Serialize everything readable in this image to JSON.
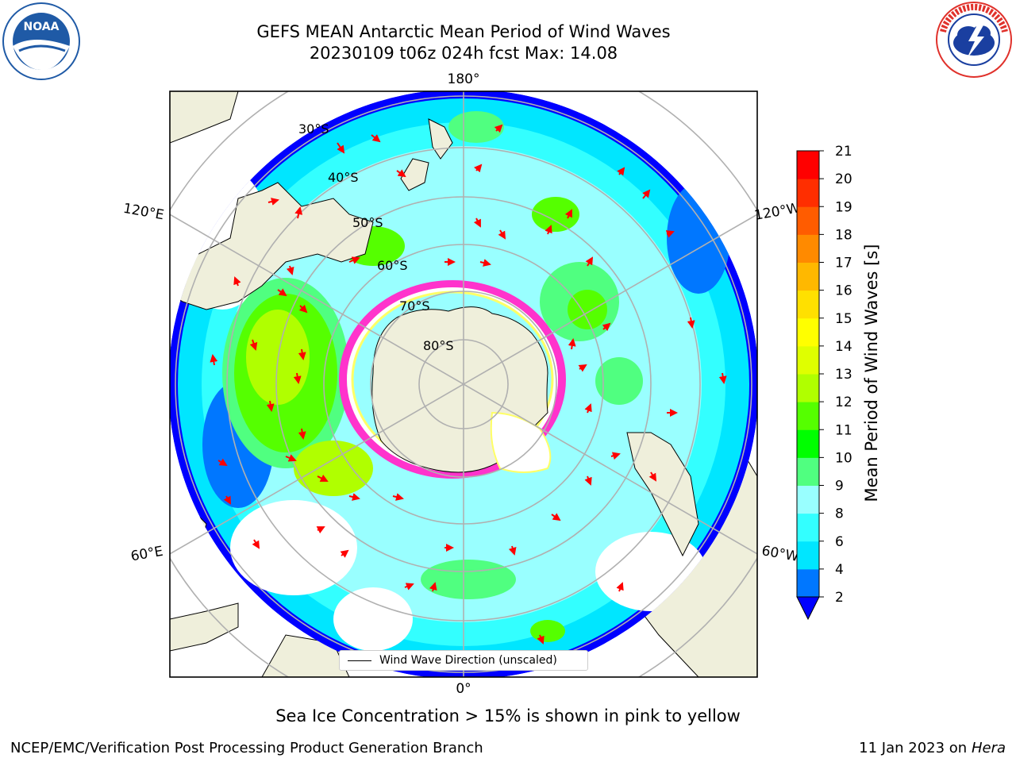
{
  "title": {
    "line1": "GEFS MEAN Antarctic Mean Period of Wind Waves",
    "line2": "20230109 t06z 024h fcst   Max: 14.08"
  },
  "logos": {
    "left": {
      "text": "NOAA",
      "ring_text": "NATIONAL OCEANIC AND ATMOSPHERIC ADMINISTRATION · U.S. DEPARTMENT OF COMMERCE",
      "color": "#1f5aa6"
    },
    "right": {
      "ring_text": "NATIONAL WEATHER SERVICE",
      "color": "#e0312b"
    }
  },
  "map": {
    "projection": "south-polar-stereographic",
    "longitude_labels": [
      "180°",
      "120°E",
      "120°W",
      "60°E",
      "60°W",
      "0°"
    ],
    "latitude_labels": [
      "30°S",
      "40°S",
      "50°S",
      "60°S",
      "70°S",
      "80°S"
    ],
    "colors": {
      "land": "#efefdb",
      "coast": "#000000",
      "grid": "#b0b0b0",
      "arrow": "#ff0000",
      "sea_ice_low": "#ff33cc",
      "sea_ice_high": "#ffff66"
    },
    "legend": {
      "label": "Wind Wave Direction (unscaled)"
    }
  },
  "colorbar": {
    "label": "Mean Period of Wind Waves [s]",
    "ticks": [
      "2",
      "4",
      "6",
      "8",
      "9",
      "10",
      "11",
      "12",
      "13",
      "14",
      "15",
      "16",
      "17",
      "18",
      "19",
      "20",
      "21"
    ],
    "colors": [
      "#0000ff",
      "#0077ff",
      "#00e6ff",
      "#33ffff",
      "#99ffff",
      "#50ff80",
      "#00ff00",
      "#55ff00",
      "#b0ff00",
      "#dfff00",
      "#ffff00",
      "#ffe000",
      "#ffb800",
      "#ff8a00",
      "#ff5c00",
      "#ff2e00",
      "#ff0000"
    ],
    "extend": "min"
  },
  "footnote": "Sea Ice Concentration > 15% is shown in pink to yellow",
  "footer": {
    "left": "NCEP/EMC/Verification Post Processing Product Generation Branch",
    "right_prefix": "11 Jan 2023 on ",
    "right_italic": "Hera"
  }
}
